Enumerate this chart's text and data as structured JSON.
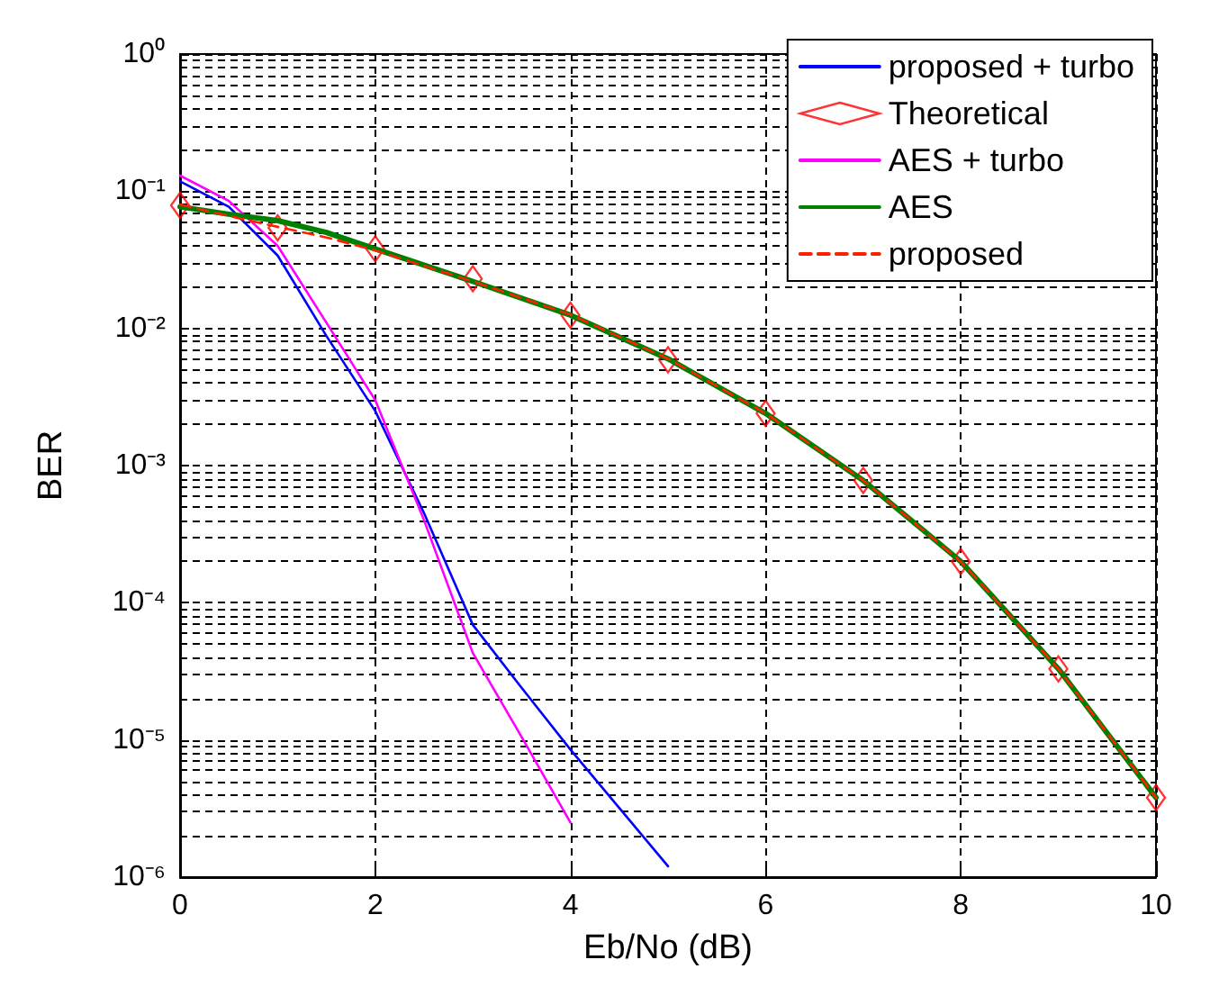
{
  "chart_data": {
    "type": "line",
    "xlabel": "Eb/No (dB)",
    "ylabel": "BER",
    "log": "y",
    "grid": true,
    "legend": "top right",
    "xlim": [
      0,
      10
    ],
    "xticks": [
      0,
      2,
      4,
      6,
      8,
      10
    ],
    "ylim": [
      1e-06,
      1
    ],
    "yticks": [
      {
        "value": 1,
        "label": "10⁰"
      },
      {
        "value": 0.1,
        "label": "10⁻¹"
      },
      {
        "value": 0.01,
        "label": "10⁻²"
      },
      {
        "value": 0.001,
        "label": "10⁻³"
      },
      {
        "value": 0.0001,
        "label": "10⁻⁴"
      },
      {
        "value": 1e-05,
        "label": "10⁻⁵"
      },
      {
        "value": 1e-06,
        "label": "10⁻⁶"
      }
    ],
    "series": [
      {
        "name": "proposed + turbo",
        "type": "line",
        "color": "#0000ff",
        "line_style": "solid",
        "marker": "none",
        "x": [
          0,
          0.5,
          1,
          1.5,
          2,
          2.5,
          3,
          3.5,
          4,
          5
        ],
        "values": [
          0.118,
          0.077,
          0.034,
          0.0088,
          0.0025,
          0.00045,
          6.9e-05,
          2.4e-05,
          8.5e-06,
          1.2e-06
        ]
      },
      {
        "name": "Theoretical",
        "type": "scatter",
        "color": "#ff0000",
        "marker": "diamond",
        "x": [
          0,
          1,
          2,
          3,
          4,
          5,
          6,
          7,
          8,
          9,
          10
        ],
        "values": [
          0.079,
          0.054,
          0.038,
          0.023,
          0.0125,
          0.0059,
          0.0024,
          0.00078,
          0.0002,
          3.3e-05,
          3.8e-06
        ]
      },
      {
        "name": "AES + turbo",
        "type": "line",
        "color": "#ff00ff",
        "line_style": "solid",
        "marker": "none",
        "x": [
          0,
          0.5,
          1,
          1.5,
          2,
          2.5,
          3,
          3.5,
          4
        ],
        "values": [
          0.13,
          0.085,
          0.04,
          0.011,
          0.003,
          0.0004,
          4.3e-05,
          1.05e-05,
          2.5e-06
        ]
      },
      {
        "name": "AES",
        "type": "line",
        "color": "#008000",
        "line_style": "solid",
        "marker": "none",
        "x": [
          0,
          0.5,
          1,
          1.5,
          2,
          3,
          4,
          5,
          6,
          7,
          8,
          9,
          10
        ],
        "values": [
          0.077,
          0.068,
          0.061,
          0.05,
          0.038,
          0.022,
          0.0125,
          0.006,
          0.0024,
          0.00078,
          0.0002,
          3.3e-05,
          3.8e-06
        ]
      },
      {
        "name": "proposed",
        "type": "line",
        "color": "#ff2000",
        "line_style": "dashed",
        "marker": "none",
        "x": [
          0,
          0.5,
          1,
          1.5,
          2,
          3,
          4,
          5,
          6,
          7,
          8,
          9,
          10
        ],
        "values": [
          0.08,
          0.066,
          0.055,
          0.046,
          0.037,
          0.022,
          0.0126,
          0.006,
          0.0024,
          0.00078,
          0.0002,
          3.3e-05,
          3.8e-06
        ]
      }
    ]
  }
}
